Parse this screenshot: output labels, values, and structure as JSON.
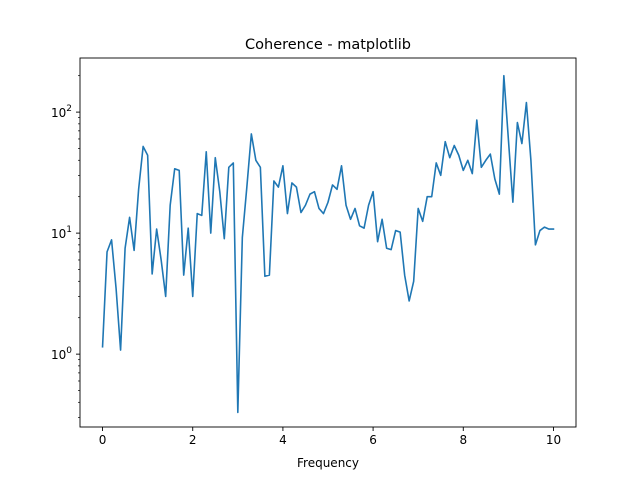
{
  "chart_data": {
    "type": "line",
    "title": "Coherence - matplotlib",
    "xlabel": "Frequency",
    "ylabel": "",
    "xlim": [
      -0.5,
      10.5
    ],
    "ylim": [
      0.25,
      280
    ],
    "yscale": "log",
    "grid": false,
    "line_color": "#1f77b4",
    "x_ticks": [
      {
        "value": 0,
        "label": "0"
      },
      {
        "value": 2,
        "label": "2"
      },
      {
        "value": 4,
        "label": "4"
      },
      {
        "value": 6,
        "label": "6"
      },
      {
        "value": 8,
        "label": "8"
      },
      {
        "value": 10,
        "label": "10"
      }
    ],
    "y_ticks": [
      {
        "value": 1,
        "base": "10",
        "exp": "0"
      },
      {
        "value": 10,
        "base": "10",
        "exp": "1"
      },
      {
        "value": 100,
        "base": "10",
        "exp": "2"
      }
    ],
    "y_minor_ticks": [
      0.3,
      0.4,
      0.5,
      0.6,
      0.7,
      0.8,
      0.9,
      2,
      3,
      4,
      5,
      6,
      7,
      8,
      9,
      20,
      30,
      40,
      50,
      60,
      70,
      80,
      90,
      200
    ],
    "series": [
      {
        "x": [
          0,
          0.1,
          0.2,
          0.3,
          0.4,
          0.5,
          0.6,
          0.7,
          0.8,
          0.9,
          1.0,
          1.1,
          1.2,
          1.3,
          1.4,
          1.5,
          1.6,
          1.7,
          1.8,
          1.9,
          2.0,
          2.1,
          2.2,
          2.3,
          2.4,
          2.5,
          2.6,
          2.7,
          2.8,
          2.9,
          3.0,
          3.1,
          3.2,
          3.3,
          3.4,
          3.5,
          3.6,
          3.7,
          3.8,
          3.9,
          4.0,
          4.1,
          4.2,
          4.3,
          4.4,
          4.5,
          4.6,
          4.7,
          4.8,
          4.9,
          5.0,
          5.1,
          5.2,
          5.3,
          5.4,
          5.5,
          5.6,
          5.7,
          5.8,
          5.9,
          6.0,
          6.1,
          6.2,
          6.3,
          6.4,
          6.5,
          6.6,
          6.7,
          6.8,
          6.9,
          7.0,
          7.1,
          7.2,
          7.3,
          7.4,
          7.5,
          7.6,
          7.7,
          7.8,
          7.9,
          8.0,
          8.1,
          8.2,
          8.3,
          8.4,
          8.5,
          8.6,
          8.7,
          8.8,
          8.9,
          9.0,
          9.1,
          9.2,
          9.3,
          9.4,
          9.5,
          9.6,
          9.7,
          9.8,
          9.9,
          10.0
        ],
        "values": [
          1.15,
          7.0,
          8.8,
          3.5,
          1.08,
          7.5,
          13.5,
          7.2,
          23.0,
          52.0,
          44.0,
          4.6,
          10.8,
          6.0,
          3.0,
          17.0,
          34.0,
          33.0,
          4.5,
          11.0,
          3.0,
          14.5,
          14.0,
          47.0,
          10.0,
          42.0,
          22.0,
          9.0,
          35.0,
          38.0,
          0.33,
          9.2,
          24.0,
          66.0,
          40.0,
          35.0,
          4.4,
          4.5,
          27.0,
          24.0,
          36.0,
          14.5,
          26.0,
          24.0,
          14.8,
          17.0,
          21.0,
          22.0,
          16.0,
          14.5,
          18.0,
          25.0,
          23.0,
          36.0,
          17.0,
          13.0,
          16.0,
          11.5,
          11.0,
          17.0,
          22.0,
          8.5,
          13.0,
          7.5,
          7.3,
          10.5,
          10.2,
          4.5,
          2.75,
          4.0,
          16.0,
          12.5,
          20.0,
          20.0,
          38.0,
          30.0,
          57.0,
          42.0,
          53.0,
          44.0,
          33.0,
          40.0,
          31.0,
          86.0,
          35.0,
          40.0,
          45.0,
          28.0,
          21.0,
          200.0,
          60.0,
          18.0,
          82.0,
          55.0,
          120.0,
          40.0,
          8.0,
          10.5,
          11.2,
          10.8,
          10.8
        ]
      }
    ]
  }
}
